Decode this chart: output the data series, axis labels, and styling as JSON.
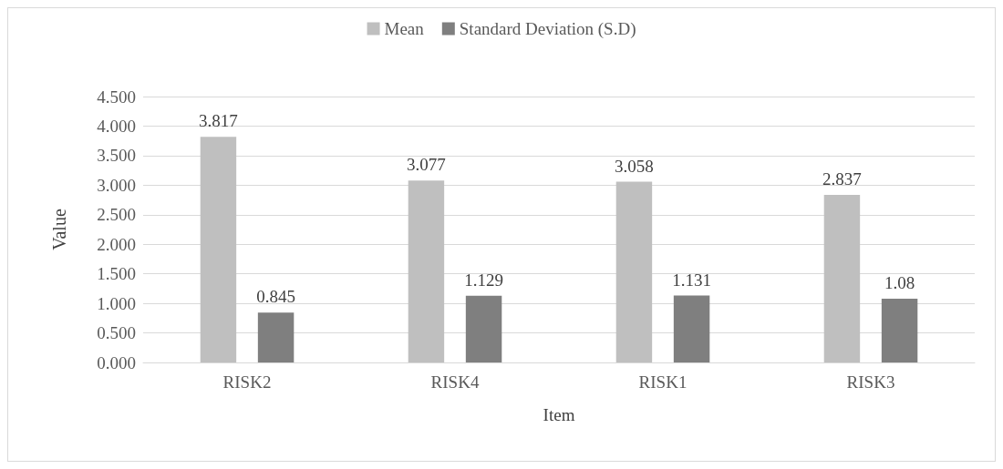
{
  "chart_data": {
    "type": "bar",
    "xlabel": "Item",
    "ylabel": "Value",
    "categories": [
      "RISK2",
      "RISK4",
      "RISK1",
      "RISK3"
    ],
    "series": [
      {
        "name": "Mean",
        "color": "#bfbfbf",
        "values": [
          3.817,
          3.077,
          3.058,
          2.837
        ]
      },
      {
        "name": "Standard Deviation (S.D)",
        "color": "#7f7f7f",
        "values": [
          0.845,
          1.129,
          1.131,
          1.08
        ]
      }
    ],
    "ylim": [
      0,
      4.5
    ],
    "yticks": [
      {
        "value": 0,
        "label": "0.000"
      },
      {
        "value": 0.5,
        "label": "0.500"
      },
      {
        "value": 1,
        "label": "1.000"
      },
      {
        "value": 1.5,
        "label": "1.500"
      },
      {
        "value": 2,
        "label": "2.000"
      },
      {
        "value": 2.5,
        "label": "2.500"
      },
      {
        "value": 3,
        "label": "3.000"
      },
      {
        "value": 3.5,
        "label": "3.500"
      },
      {
        "value": 4,
        "label": "4.000"
      },
      {
        "value": 4.5,
        "label": "4.500"
      }
    ],
    "grid": "y",
    "legend": "top",
    "data_labels": true
  }
}
